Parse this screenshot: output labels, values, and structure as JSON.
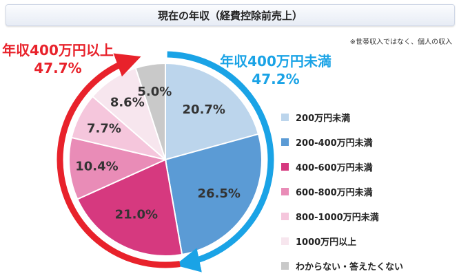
{
  "title": "現在の年収（経費控除前売上）",
  "note": "※世帯収入ではなく、個人の収入",
  "group_under": {
    "line1": "年収400万円未満",
    "line2": "47.2%",
    "color": "#1aa3e6"
  },
  "group_over": {
    "line1": "年収400万円以上",
    "line2": "47.7%",
    "color": "#e8222b"
  },
  "chart_data": {
    "type": "pie",
    "title": "現在の年収（経費控除前売上）",
    "start_angle_deg": 0,
    "direction": "clockwise",
    "slices": [
      {
        "label": "200万円未満",
        "value": 20.7,
        "display": "20.7%",
        "color": "#bcd5ec",
        "text_color": "#333333"
      },
      {
        "label": "200-400万円未満",
        "value": 26.5,
        "display": "26.5%",
        "color": "#5b9bd5",
        "text_color": "#333333"
      },
      {
        "label": "400-600万円未満",
        "value": 21.0,
        "display": "21.0%",
        "color": "#d6397f",
        "text_color": "#ffffff"
      },
      {
        "label": "600-800万円未満",
        "value": 10.4,
        "display": "10.4%",
        "color": "#e98cb7",
        "text_color": "#333333"
      },
      {
        "label": "800-1000万円未満",
        "value": 7.7,
        "display": "7.7%",
        "color": "#f5c6dc",
        "text_color": "#333333"
      },
      {
        "label": "1000万円以上",
        "value": 8.6,
        "display": "8.6%",
        "color": "#f7e6ee",
        "text_color": "#333333"
      },
      {
        "label": "わからない・答えたくない",
        "value": 5.0,
        "display": "5.0%",
        "color": "#c9c9c9",
        "text_color": "#333333"
      }
    ]
  }
}
